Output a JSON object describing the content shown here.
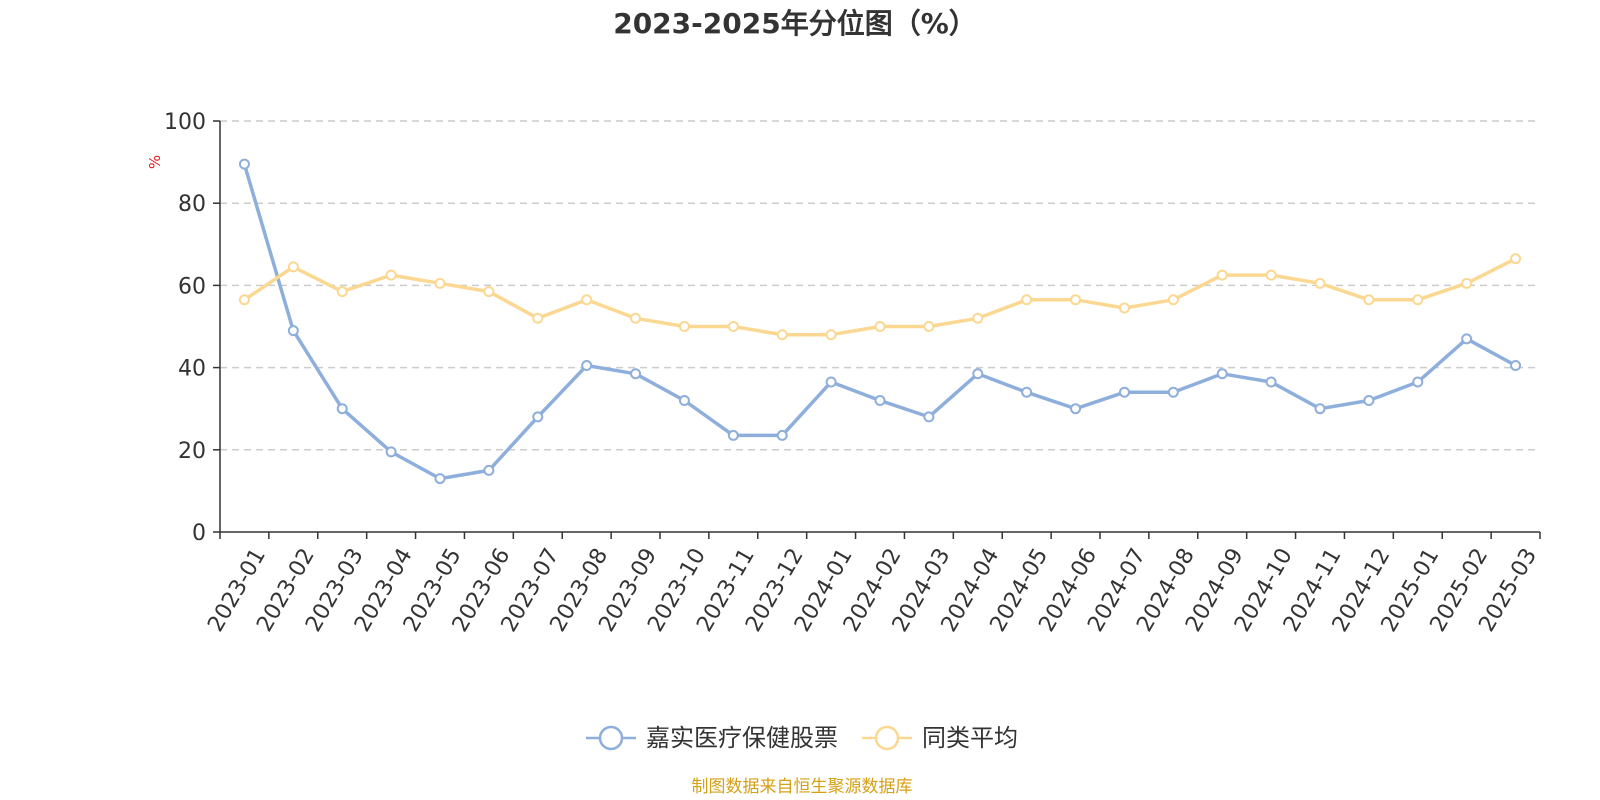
{
  "chart_data": {
    "type": "line",
    "title": "2023-2025年分位图（%）",
    "ylabel": "%",
    "ylim": [
      0,
      100
    ],
    "yticks": [
      0,
      20,
      40,
      60,
      80,
      100
    ],
    "grid": true,
    "legend_position": "bottom-center",
    "categories": [
      "2023-01",
      "2023-02",
      "2023-03",
      "2023-04",
      "2023-05",
      "2023-06",
      "2023-07",
      "2023-08",
      "2023-09",
      "2023-10",
      "2023-11",
      "2023-12",
      "2024-01",
      "2024-02",
      "2024-03",
      "2024-04",
      "2024-05",
      "2024-06",
      "2024-07",
      "2024-08",
      "2024-09",
      "2024-10",
      "2024-11",
      "2024-12",
      "2025-01",
      "2025-02",
      "2025-03"
    ],
    "series": [
      {
        "name": "嘉实医疗保健股票",
        "color": "#8eaedb",
        "values": [
          89.5,
          49.0,
          30.0,
          19.5,
          13.0,
          15.0,
          28.0,
          40.5,
          38.5,
          32.0,
          23.5,
          23.5,
          36.5,
          32.0,
          28.0,
          38.5,
          34.0,
          30.0,
          34.0,
          34.0,
          38.5,
          36.5,
          30.0,
          32.0,
          36.5,
          47.0,
          40.5
        ]
      },
      {
        "name": "同类平均",
        "color": "#fbd892",
        "values": [
          56.5,
          64.5,
          58.5,
          62.5,
          60.5,
          58.5,
          52.0,
          56.5,
          52.0,
          50.0,
          50.0,
          48.0,
          48.0,
          50.0,
          50.0,
          52.0,
          56.5,
          56.5,
          54.5,
          56.5,
          62.5,
          62.5,
          60.5,
          56.5,
          56.5,
          60.5,
          66.5
        ]
      }
    ]
  },
  "source": "制图数据来自恒生聚源数据库",
  "colors": {
    "axis": "#333333",
    "grid": "#cccccc",
    "unit": "#e02020",
    "source": "#d4a017"
  }
}
